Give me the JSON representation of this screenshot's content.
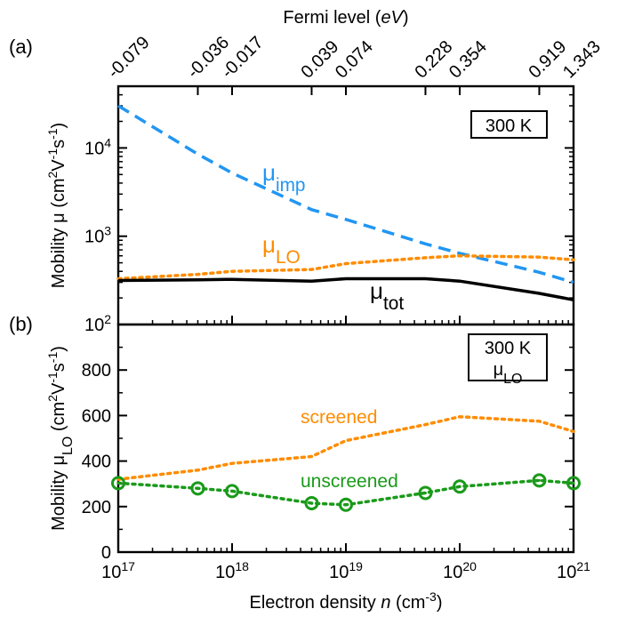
{
  "chart_data": [
    {
      "panel": "(a)",
      "type": "line",
      "yscale": "log",
      "x": [
        1e+17,
        5e+17,
        1e+18,
        5e+18,
        1e+19,
        5e+19,
        1e+20,
        5e+20,
        1e+21
      ],
      "xlim": [
        1e+17,
        1e+21
      ],
      "ylim": [
        100,
        50000
      ],
      "ylabel": "Mobility μ (cm2V-1s-1)",
      "top_axis": {
        "label": "Fermi level (eV)",
        "x": [
          1e+17,
          5e+17,
          1e+18,
          5e+18,
          1e+19,
          5e+19,
          1e+20,
          5e+20,
          1e+21
        ],
        "labels": [
          "-0.079",
          "-0.036",
          "-0.017",
          "0.039",
          "0.074",
          "0.228",
          "0.354",
          "0.919",
          "1.343"
        ]
      },
      "y_ticks": [
        {
          "v": 100,
          "base": "10",
          "exp": "2"
        },
        {
          "v": 1000,
          "base": "10",
          "exp": "3"
        },
        {
          "v": 10000,
          "base": "10",
          "exp": "4"
        }
      ],
      "legend_box": "300 K",
      "series": [
        {
          "name": "μimp",
          "sym": "μ",
          "sub": "imp",
          "color": "#2196F3",
          "style": "dashed",
          "values": [
            30000,
            8500,
            5200,
            2000,
            1550,
            820,
            640,
            390,
            300
          ]
        },
        {
          "name": "μLO",
          "sym": "μ",
          "sub": "LO",
          "color": "#FF8C00",
          "style": "dotted",
          "values": [
            330,
            370,
            400,
            420,
            490,
            570,
            600,
            580,
            540
          ]
        },
        {
          "name": "μtot",
          "sym": "μ",
          "sub": "tot",
          "color": "#000000",
          "style": "solid",
          "values": [
            315,
            320,
            325,
            310,
            330,
            330,
            310,
            225,
            190
          ]
        }
      ]
    },
    {
      "panel": "(b)",
      "type": "line",
      "yscale": "linear",
      "x": [
        1e+17,
        5e+17,
        1e+18,
        5e+18,
        1e+19,
        5e+19,
        1e+20,
        5e+20,
        1e+21
      ],
      "xlim": [
        1e+17,
        1e+21
      ],
      "ylim": [
        0,
        1000
      ],
      "yticks": [
        0,
        200,
        400,
        600,
        800
      ],
      "ylabel": "Mobility μLO (cm2V-1s-1)",
      "xlabel": "Electron density n (cm-3)",
      "x_ticks": [
        {
          "v": 1e+17,
          "exp": "17"
        },
        {
          "v": 1e+18,
          "exp": "18"
        },
        {
          "v": 1e+19,
          "exp": "19"
        },
        {
          "v": 1e+20,
          "exp": "20"
        },
        {
          "v": 1e+21,
          "exp": "21"
        }
      ],
      "legend_box": [
        "300 K",
        "μLO"
      ],
      "series": [
        {
          "name": "screened",
          "color": "#FF8C00",
          "style": "dotted",
          "values": [
            320,
            360,
            390,
            420,
            490,
            560,
            595,
            575,
            530
          ]
        },
        {
          "name": "unscreened",
          "color": "#1A9A1A",
          "style": "dotted-markers",
          "values": [
            303,
            280,
            268,
            215,
            208,
            260,
            288,
            315,
            303
          ]
        }
      ]
    }
  ],
  "text": {
    "top_label_a": "Fermi level (",
    "top_label_b": "eV",
    "top_label_c": ")",
    "panel_a": "(a)",
    "panel_b": "(b)",
    "box_a": "300 K",
    "box_b1": "300 K",
    "box_b2_sym": "μ",
    "box_b2_sub": "LO",
    "label_imp_sym": "μ",
    "label_imp_sub": "imp",
    "label_lo_sym": "μ",
    "label_lo_sub": "LO",
    "label_tot_sym": "μ",
    "label_tot_sub": "tot",
    "label_screened": "screened",
    "label_unscreened": "unscreened",
    "ylabel_a": [
      "Mobility μ (cm",
      "2",
      "V",
      "-1",
      "s",
      "-1",
      ")"
    ],
    "ylabel_b": [
      "Mobility μ",
      "LO",
      " (cm",
      "2",
      "V",
      "-1",
      "s",
      "-1",
      ")"
    ],
    "xlabel": [
      "Electron density ",
      "n",
      " (cm",
      "-3",
      ")"
    ]
  }
}
